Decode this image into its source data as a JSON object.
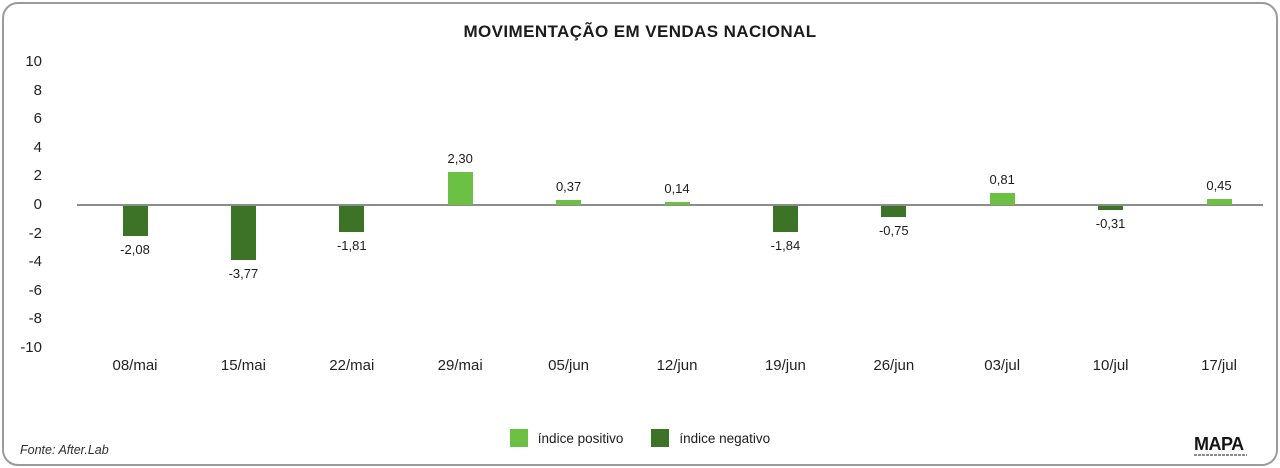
{
  "page": {
    "title": "MOVIMENTAÇÃO EM VENDAS NACIONAL",
    "source_note": "Fonte: After.Lab",
    "logo_text": "MAPA"
  },
  "legend": [
    {
      "label": "índice positivo",
      "color": "#6cc043"
    },
    {
      "label": "índice negativo",
      "color": "#3d7326"
    }
  ],
  "colors": {
    "positive_bar": "#6cc043",
    "negative_bar": "#3d7326",
    "zero_line": "#8c8c8c",
    "text": "#1c1c1c"
  },
  "chart_data": {
    "type": "bar",
    "title": "MOVIMENTAÇÃO EM VENDAS NACIONAL",
    "categories": [
      "08/mai",
      "15/mai",
      "22/mai",
      "29/mai",
      "05/jun",
      "12/jun",
      "19/jun",
      "26/jun",
      "03/jul",
      "10/jul",
      "17/jul"
    ],
    "values": [
      -2.08,
      -3.77,
      -1.81,
      2.3,
      0.37,
      0.14,
      -1.84,
      -0.75,
      0.81,
      -0.31,
      0.45
    ],
    "value_labels": [
      "-2,08",
      "-3,77",
      "-1,81",
      "2,30",
      "0,37",
      "0,14",
      "-1,84",
      "-0,75",
      "0,81",
      "-0,31",
      "0,45"
    ],
    "series": [
      {
        "name": "índice positivo",
        "rule": "values >= 0",
        "color": "#6cc043"
      },
      {
        "name": "índice negativo",
        "rule": "values < 0",
        "color": "#3d7326"
      }
    ],
    "xlabel": "",
    "ylabel": "",
    "ylim": [
      -10,
      10
    ],
    "yticks": [
      10,
      8,
      6,
      4,
      2,
      0,
      -2,
      -4,
      -6,
      -8,
      -10
    ],
    "grid": false,
    "legend_position": "bottom-center",
    "decimal_separator": ","
  }
}
